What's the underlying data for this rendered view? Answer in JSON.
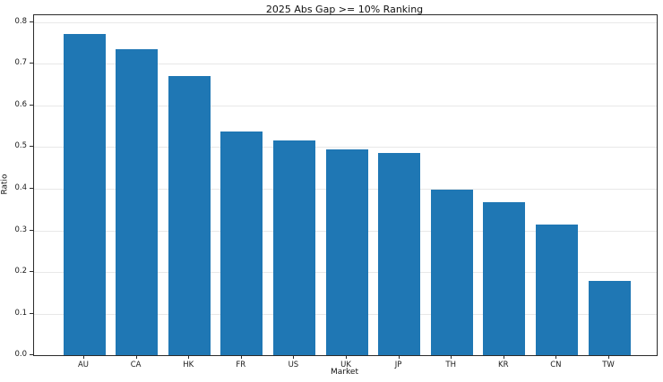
{
  "chart_data": {
    "type": "bar",
    "title": "2025 Abs Gap >= 10% Ranking",
    "xlabel": "Market",
    "ylabel": "Ratio",
    "categories": [
      "AU",
      "CA",
      "HK",
      "FR",
      "US",
      "UK",
      "JP",
      "TH",
      "KR",
      "CN",
      "TW"
    ],
    "values": [
      0.771,
      0.735,
      0.67,
      0.537,
      0.517,
      0.494,
      0.485,
      0.398,
      0.367,
      0.314,
      0.178
    ],
    "ylim": [
      0,
      0.817
    ],
    "yticks": [
      0.0,
      0.1,
      0.2,
      0.3,
      0.4,
      0.5,
      0.6,
      0.7,
      0.8
    ],
    "ytick_labels": [
      "0.0",
      "0.1",
      "0.2",
      "0.3",
      "0.4",
      "0.5",
      "0.6",
      "0.7",
      "0.8"
    ],
    "grid": "horizontal-only",
    "legend": "none",
    "bar_color": "#1f77b4",
    "grid_color": "#e8e8e8",
    "spine_color": "#2b2b2b"
  }
}
